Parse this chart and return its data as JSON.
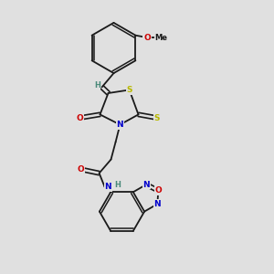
{
  "bg_color": "#e0e0e0",
  "bond_color": "#1a1a1a",
  "atom_colors": {
    "S": "#b8b800",
    "N": "#0000cc",
    "O": "#cc0000",
    "H": "#4a8a7a",
    "C": "#1a1a1a"
  },
  "font_size": 6.5
}
